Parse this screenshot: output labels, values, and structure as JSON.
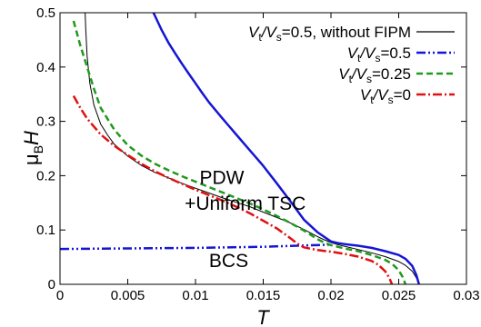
{
  "chart_data": {
    "type": "line",
    "xlabel": "T",
    "ylabel_main": "μ",
    "ylabel_sub": "B",
    "ylabel_tail": "H",
    "xlim": [
      0,
      0.03
    ],
    "ylim": [
      0,
      0.5
    ],
    "xticks": [
      "0",
      "0.005",
      "0.01",
      "0.015",
      "0.02",
      "0.025",
      "0.03"
    ],
    "xtick_values": [
      0,
      0.005,
      0.01,
      0.015,
      0.02,
      0.025,
      0.03
    ],
    "yticks": [
      "0",
      "0.1",
      "0.2",
      "0.3",
      "0.4",
      "0.5"
    ],
    "ytick_values": [
      0,
      0.1,
      0.2,
      0.3,
      0.4,
      0.5
    ],
    "grid": false,
    "legend_position": "top-right",
    "legend": [
      {
        "main": "V",
        "sub1": "t",
        "mid": "/V",
        "sub2": "s",
        "tail": "=0.5, without FIPM",
        "color": "#000000",
        "dash": "solid",
        "width": 1.2
      },
      {
        "main": "V",
        "sub1": "t",
        "mid": "/V",
        "sub2": "s",
        "tail": "=0.5",
        "color": "#1515d6",
        "dash": "dashdotdot",
        "width": 2.5
      },
      {
        "main": "V",
        "sub1": "t",
        "mid": "/V",
        "sub2": "s",
        "tail": "=0.25",
        "color": "#1e9a1e",
        "dash": "dashed",
        "width": 2.5
      },
      {
        "main": "V",
        "sub1": "t",
        "mid": "/V",
        "sub2": "s",
        "tail": "=0",
        "color": "#e01010",
        "dash": "dashdot",
        "width": 2.5
      }
    ],
    "annotations": [
      {
        "text": "PDW",
        "x": 0.0103,
        "y": 0.185
      },
      {
        "text": "+Uniform TSC",
        "x": 0.0092,
        "y": 0.137
      },
      {
        "text": "BCS",
        "x": 0.011,
        "y": 0.032
      }
    ],
    "series": [
      {
        "key": "black",
        "color": "#000000",
        "dash": "",
        "width": 1,
        "x": [
          0.00185,
          0.0019,
          0.002,
          0.0022,
          0.0025,
          0.003,
          0.0035,
          0.004,
          0.005,
          0.006,
          0.007,
          0.008,
          0.009,
          0.01,
          0.011,
          0.012,
          0.013,
          0.014,
          0.015,
          0.016,
          0.017,
          0.018,
          0.019,
          0.0195,
          0.02,
          0.0205,
          0.021,
          0.022,
          0.023,
          0.024,
          0.025,
          0.0255,
          0.026,
          0.0263,
          0.0265
        ],
        "y": [
          0.5,
          0.47,
          0.42,
          0.37,
          0.33,
          0.295,
          0.275,
          0.258,
          0.236,
          0.219,
          0.206,
          0.196,
          0.186,
          0.177,
          0.168,
          0.159,
          0.151,
          0.143,
          0.133,
          0.123,
          0.113,
          0.101,
          0.088,
          0.082,
          0.077,
          0.073,
          0.07,
          0.064,
          0.058,
          0.051,
          0.042,
          0.035,
          0.024,
          0.012,
          0.0
        ]
      },
      {
        "key": "blue-main",
        "color": "#1515d6",
        "dash": "",
        "width": 2.5,
        "x": [
          0.0069,
          0.0075,
          0.008,
          0.0085,
          0.009,
          0.0095,
          0.01,
          0.0105,
          0.011,
          0.012,
          0.013,
          0.014,
          0.015,
          0.016,
          0.017,
          0.018,
          0.019,
          0.02,
          0.0205,
          0.021,
          0.022,
          0.023,
          0.024,
          0.025,
          0.0255,
          0.026,
          0.0263,
          0.0265
        ],
        "y": [
          0.5,
          0.468,
          0.445,
          0.425,
          0.406,
          0.388,
          0.37,
          0.352,
          0.335,
          0.305,
          0.276,
          0.247,
          0.218,
          0.186,
          0.153,
          0.119,
          0.096,
          0.079,
          0.076,
          0.074,
          0.071,
          0.067,
          0.061,
          0.054,
          0.047,
          0.034,
          0.017,
          0.0
        ]
      },
      {
        "key": "blue-dashdot",
        "color": "#1515d6",
        "dash": "10,3,2,3,2,3",
        "width": 2.5,
        "x": [
          0.0,
          0.005,
          0.01,
          0.015,
          0.0175,
          0.02
        ],
        "y": [
          0.065,
          0.066,
          0.067,
          0.069,
          0.071,
          0.073
        ]
      },
      {
        "key": "green",
        "color": "#1e9a1e",
        "dash": "7,4",
        "width": 2.5,
        "x": [
          0.001,
          0.0015,
          0.002,
          0.0025,
          0.003,
          0.004,
          0.005,
          0.006,
          0.007,
          0.008,
          0.009,
          0.01,
          0.011,
          0.012,
          0.013,
          0.014,
          0.015,
          0.016,
          0.017,
          0.018,
          0.0185,
          0.019,
          0.0195,
          0.02,
          0.021,
          0.022,
          0.023,
          0.024,
          0.0245,
          0.025,
          0.0253,
          0.0255
        ],
        "y": [
          0.485,
          0.44,
          0.4,
          0.36,
          0.325,
          0.285,
          0.256,
          0.237,
          0.222,
          0.21,
          0.199,
          0.189,
          0.179,
          0.169,
          0.159,
          0.149,
          0.138,
          0.126,
          0.113,
          0.099,
          0.091,
          0.083,
          0.077,
          0.072,
          0.066,
          0.061,
          0.054,
          0.045,
          0.038,
          0.026,
          0.013,
          0.0
        ]
      },
      {
        "key": "red",
        "color": "#e01010",
        "dash": "10,3,2,3",
        "width": 2.5,
        "x": [
          0.001,
          0.0015,
          0.002,
          0.003,
          0.004,
          0.005,
          0.006,
          0.007,
          0.008,
          0.009,
          0.01,
          0.011,
          0.012,
          0.013,
          0.014,
          0.015,
          0.016,
          0.017,
          0.0175,
          0.018,
          0.019,
          0.02,
          0.021,
          0.022,
          0.023,
          0.0235,
          0.024,
          0.0243,
          0.0245
        ],
        "y": [
          0.347,
          0.325,
          0.305,
          0.276,
          0.255,
          0.238,
          0.222,
          0.208,
          0.196,
          0.185,
          0.174,
          0.164,
          0.154,
          0.143,
          0.131,
          0.117,
          0.103,
          0.085,
          0.075,
          0.068,
          0.063,
          0.06,
          0.056,
          0.051,
          0.043,
          0.036,
          0.024,
          0.012,
          0.0
        ]
      }
    ]
  }
}
